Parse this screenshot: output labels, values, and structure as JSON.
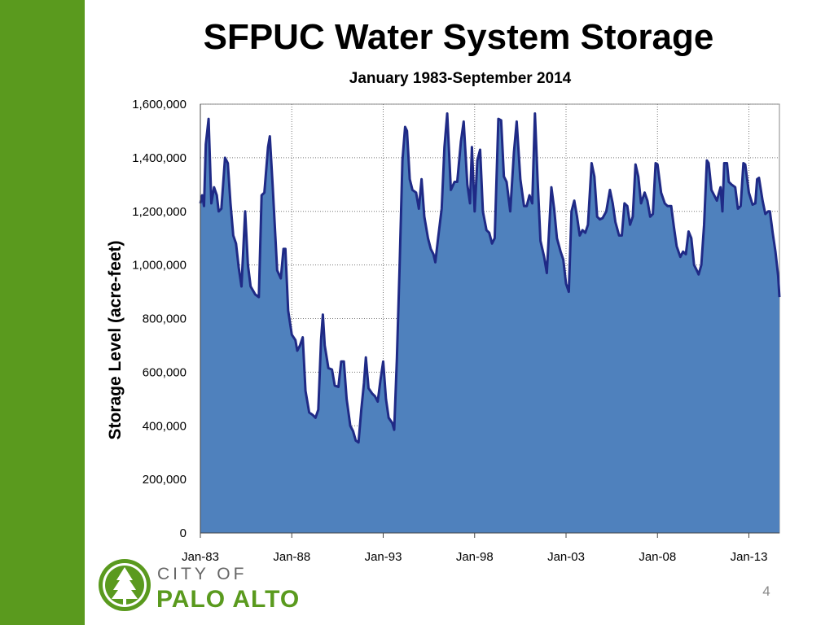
{
  "chart_data": {
    "type": "area",
    "title": "SFPUC Water System Storage",
    "subtitle": "January 1983-September 2014",
    "y_label": "Storage Level (acre-feet)",
    "color": "#4f81bd",
    "line_color": "#1f2a86",
    "grid": true,
    "xlim": [
      1983,
      2014.67
    ],
    "xticks": [
      {
        "value": 1983,
        "label": "Jan-83"
      },
      {
        "value": 1988,
        "label": "Jan-88"
      },
      {
        "value": 1993,
        "label": "Jan-93"
      },
      {
        "value": 1998,
        "label": "Jan-98"
      },
      {
        "value": 2003,
        "label": "Jan-03"
      },
      {
        "value": 2008,
        "label": "Jan-08"
      },
      {
        "value": 2013,
        "label": "Jan-13"
      }
    ],
    "ylim": [
      0,
      1600000
    ],
    "yticks": [
      0,
      {
        "value": 200000,
        "label": "200,000"
      },
      {
        "value": 400000,
        "label": "400,000"
      },
      {
        "value": 600000,
        "label": "600,000"
      },
      {
        "value": 800000,
        "label": "800,000"
      },
      {
        "value": 1000000,
        "label": "1,000,000"
      },
      {
        "value": 1200000,
        "label": "1,200,000"
      },
      {
        "value": 1400000,
        "label": "1,400,000"
      },
      {
        "value": 1600000,
        "label": "1,600,000"
      }
    ],
    "x": [
      1983.0,
      1983.1,
      1983.2,
      1983.3,
      1983.45,
      1983.6,
      1983.75,
      1983.9,
      1984.0,
      1984.15,
      1984.35,
      1984.5,
      1984.65,
      1984.8,
      1984.95,
      1985.1,
      1985.25,
      1985.45,
      1985.6,
      1985.75,
      1986.0,
      1986.2,
      1986.35,
      1986.5,
      1986.7,
      1986.8,
      1986.95,
      1987.2,
      1987.4,
      1987.55,
      1987.65,
      1987.8,
      1988.0,
      1988.2,
      1988.3,
      1988.45,
      1988.6,
      1988.75,
      1988.95,
      1989.15,
      1989.3,
      1989.45,
      1989.6,
      1989.7,
      1989.8,
      1990.0,
      1990.2,
      1990.35,
      1990.55,
      1990.7,
      1990.85,
      1991.0,
      1991.2,
      1991.35,
      1991.5,
      1991.65,
      1991.8,
      1991.95,
      1992.05,
      1992.2,
      1992.4,
      1992.55,
      1992.7,
      1992.85,
      1993.0,
      1993.15,
      1993.3,
      1993.5,
      1993.6,
      1993.75,
      1993.9,
      1994.05,
      1994.2,
      1994.3,
      1994.45,
      1994.6,
      1994.8,
      1994.95,
      1995.1,
      1995.25,
      1995.45,
      1995.6,
      1995.75,
      1995.85,
      1996.0,
      1996.2,
      1996.35,
      1996.5,
      1996.7,
      1996.9,
      1997.05,
      1997.25,
      1997.4,
      1997.6,
      1997.75,
      1997.85,
      1998.0,
      1998.15,
      1998.3,
      1998.45,
      1998.65,
      1998.8,
      1998.95,
      1999.1,
      1999.3,
      1999.45,
      1999.6,
      1999.75,
      1999.95,
      2000.15,
      2000.3,
      2000.5,
      2000.7,
      2000.85,
      2001.0,
      2001.15,
      2001.3,
      2001.45,
      2001.6,
      2001.8,
      2001.95,
      2002.2,
      2002.35,
      2002.5,
      2002.7,
      2002.85,
      2003.0,
      2003.15,
      2003.3,
      2003.45,
      2003.6,
      2003.75,
      2003.9,
      2004.05,
      2004.2,
      2004.4,
      2004.55,
      2004.7,
      2004.85,
      2005.0,
      2005.2,
      2005.4,
      2005.55,
      2005.7,
      2005.9,
      2006.05,
      2006.2,
      2006.35,
      2006.5,
      2006.65,
      2006.8,
      2006.95,
      2007.1,
      2007.3,
      2007.45,
      2007.6,
      2007.75,
      2007.9,
      2008.0,
      2008.2,
      2008.4,
      2008.55,
      2008.75,
      2008.9,
      2009.05,
      2009.25,
      2009.4,
      2009.55,
      2009.7,
      2009.85,
      2010.0,
      2010.15,
      2010.25,
      2010.4,
      2010.55,
      2010.7,
      2010.8,
      2010.95,
      2011.1,
      2011.25,
      2011.45,
      2011.55,
      2011.65,
      2011.8,
      2011.9,
      2012.05,
      2012.25,
      2012.4,
      2012.55,
      2012.7,
      2012.8,
      2013.0,
      2013.2,
      2013.35,
      2013.45,
      2013.55,
      2013.75,
      2013.9,
      2014.05,
      2014.15,
      2014.3,
      2014.45,
      2014.6,
      2014.67
    ],
    "values": [
      1230000,
      1260000,
      1220000,
      1450000,
      1545000,
      1230000,
      1290000,
      1260000,
      1200000,
      1210000,
      1400000,
      1380000,
      1230000,
      1110000,
      1080000,
      990000,
      920000,
      1200000,
      1000000,
      920000,
      890000,
      880000,
      1260000,
      1270000,
      1440000,
      1480000,
      1300000,
      980000,
      950000,
      1060000,
      1060000,
      830000,
      740000,
      720000,
      680000,
      700000,
      730000,
      530000,
      450000,
      440000,
      430000,
      460000,
      720000,
      815000,
      700000,
      615000,
      610000,
      550000,
      545000,
      640000,
      640000,
      500000,
      400000,
      380000,
      345000,
      338000,
      460000,
      560000,
      655000,
      540000,
      520000,
      510000,
      490000,
      570000,
      640000,
      500000,
      430000,
      410000,
      385000,
      650000,
      1000000,
      1390000,
      1515000,
      1500000,
      1320000,
      1280000,
      1270000,
      1210000,
      1320000,
      1180000,
      1100000,
      1060000,
      1040000,
      1010000,
      1100000,
      1210000,
      1440000,
      1565000,
      1280000,
      1310000,
      1310000,
      1460000,
      1535000,
      1300000,
      1230000,
      1440000,
      1200000,
      1390000,
      1430000,
      1200000,
      1130000,
      1120000,
      1080000,
      1100000,
      1545000,
      1540000,
      1330000,
      1310000,
      1200000,
      1420000,
      1535000,
      1320000,
      1220000,
      1220000,
      1260000,
      1230000,
      1565000,
      1310000,
      1090000,
      1030000,
      970000,
      1290000,
      1210000,
      1100000,
      1050000,
      1020000,
      930000,
      900000,
      1200000,
      1240000,
      1180000,
      1110000,
      1130000,
      1120000,
      1150000,
      1380000,
      1330000,
      1180000,
      1170000,
      1175000,
      1200000,
      1280000,
      1230000,
      1160000,
      1110000,
      1110000,
      1230000,
      1220000,
      1150000,
      1180000,
      1375000,
      1330000,
      1230000,
      1270000,
      1240000,
      1180000,
      1190000,
      1380000,
      1375000,
      1270000,
      1230000,
      1220000,
      1220000,
      1140000,
      1070000,
      1030000,
      1050000,
      1040000,
      1125000,
      1100000,
      1000000,
      980000,
      965000,
      1000000,
      1150000,
      1390000,
      1380000,
      1280000,
      1260000,
      1240000,
      1290000,
      1200000,
      1380000,
      1380000,
      1310000,
      1300000,
      1290000,
      1210000,
      1220000,
      1380000,
      1375000,
      1270000,
      1225000,
      1230000,
      1320000,
      1325000,
      1240000,
      1190000,
      1200000,
      1200000,
      1120000,
      1050000,
      960000,
      880000
    ]
  },
  "logo": {
    "line1": "CITY OF",
    "line2": "PALO ALTO"
  },
  "page_number": "4"
}
